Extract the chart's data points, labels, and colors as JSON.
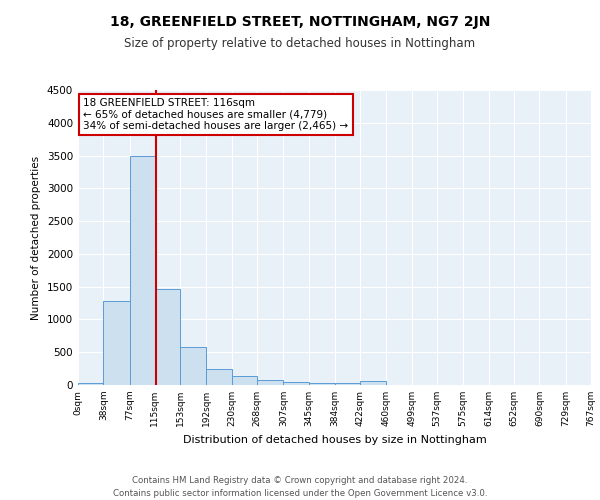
{
  "title": "18, GREENFIELD STREET, NOTTINGHAM, NG7 2JN",
  "subtitle": "Size of property relative to detached houses in Nottingham",
  "xlabel": "Distribution of detached houses by size in Nottingham",
  "ylabel": "Number of detached properties",
  "bin_edges": [
    0,
    38,
    77,
    115,
    153,
    192,
    230,
    268,
    307,
    345,
    384,
    422,
    460,
    499,
    537,
    575,
    614,
    652,
    690,
    729,
    767
  ],
  "bar_heights": [
    38,
    1280,
    3500,
    1470,
    580,
    240,
    130,
    80,
    50,
    30,
    30,
    55,
    0,
    0,
    0,
    0,
    0,
    0,
    0,
    0
  ],
  "bar_color": "#cce0f0",
  "bar_edge_color": "#5b9bd5",
  "property_x": 116,
  "property_line_color": "#cc0000",
  "annotation_text": "18 GREENFIELD STREET: 116sqm\n← 65% of detached houses are smaller (4,779)\n34% of semi-detached houses are larger (2,465) →",
  "annotation_box_color": "#ffffff",
  "annotation_box_edge_color": "#cc0000",
  "ylim": [
    0,
    4500
  ],
  "xlim": [
    0,
    767
  ],
  "bg_color": "#e8f0f8",
  "grid_color": "#ffffff",
  "footer": "Contains HM Land Registry data © Crown copyright and database right 2024.\nContains public sector information licensed under the Open Government Licence v3.0.",
  "tick_labels": [
    "0sqm",
    "38sqm",
    "77sqm",
    "115sqm",
    "153sqm",
    "192sqm",
    "230sqm",
    "268sqm",
    "307sqm",
    "345sqm",
    "384sqm",
    "422sqm",
    "460sqm",
    "499sqm",
    "537sqm",
    "575sqm",
    "614sqm",
    "652sqm",
    "690sqm",
    "729sqm",
    "767sqm"
  ]
}
